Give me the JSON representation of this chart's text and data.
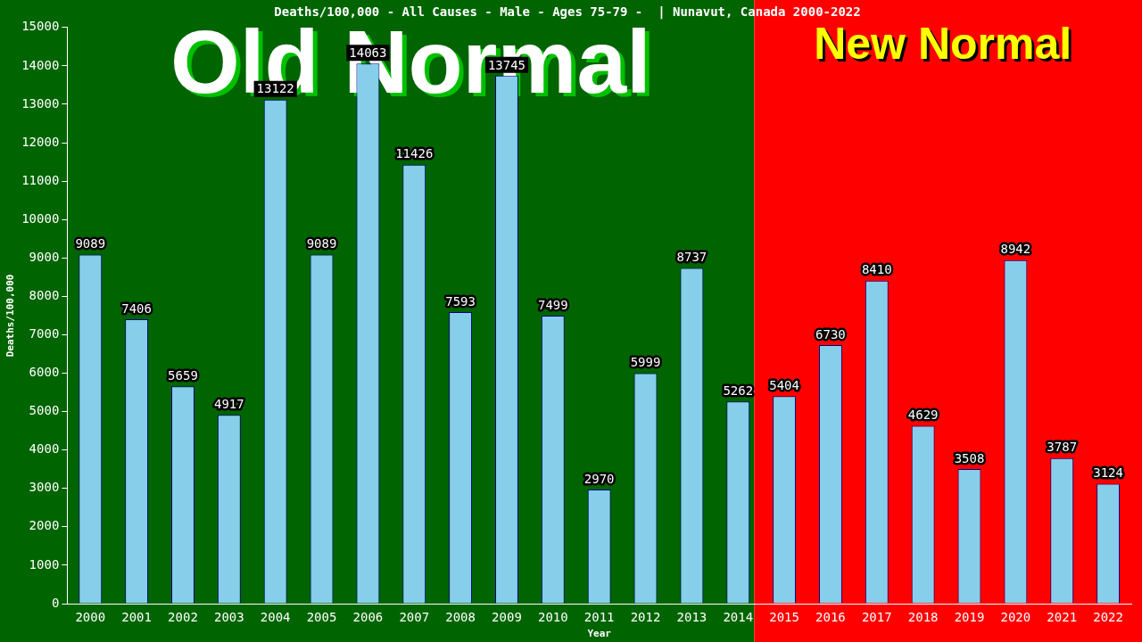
{
  "chart_data": {
    "type": "bar",
    "title": "Deaths/100,000 - All Causes - Male - Ages 75-79 -  | Nunavut, Canada 2000-2022",
    "xlabel": "Year",
    "ylabel": "Deaths/100,000",
    "categories": [
      "2000",
      "2001",
      "2002",
      "2003",
      "2004",
      "2005",
      "2006",
      "2007",
      "2008",
      "2009",
      "2010",
      "2011",
      "2012",
      "2013",
      "2014",
      "2015",
      "2016",
      "2017",
      "2018",
      "2019",
      "2020",
      "2021",
      "2022"
    ],
    "values": [
      9089,
      7406,
      5659,
      4917,
      13122,
      9089,
      14063,
      11426,
      7593,
      13745,
      7499,
      2970,
      5999,
      8737,
      5262,
      5404,
      6730,
      8410,
      4629,
      3508,
      8942,
      3787,
      3124
    ],
    "color": "#87ceeb",
    "data_labels": true,
    "grid": false,
    "legend": false,
    "ylim": [
      0,
      15000
    ],
    "yticks": [
      0,
      1000,
      2000,
      3000,
      4000,
      5000,
      6000,
      7000,
      8000,
      9000,
      10000,
      11000,
      12000,
      13000,
      14000,
      15000
    ],
    "bands": [
      {
        "axis": "x",
        "from": "2000",
        "to": "2014",
        "label": "Old Normal",
        "color": "#006400"
      },
      {
        "axis": "x",
        "from": "2014",
        "to": "2022",
        "label": "New Normal",
        "color": "#ff0000"
      }
    ]
  }
}
